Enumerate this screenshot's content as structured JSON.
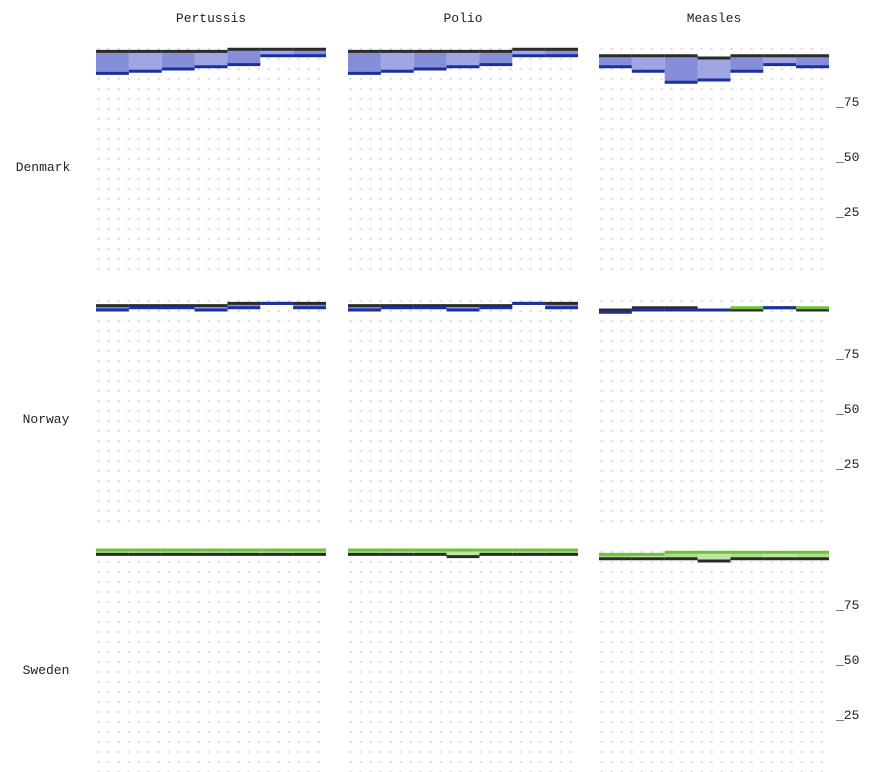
{
  "chart_data": {
    "type": "line",
    "chart_style": "small multiples, step lines with shaded gap between two series",
    "columns": [
      "Pertussis",
      "Polio",
      "Measles"
    ],
    "rows": [
      "Denmark",
      "Norway",
      "Sweden"
    ],
    "periods": 7,
    "ylim": [
      0,
      100
    ],
    "yticks": [
      {
        "value": 75,
        "label": "_75"
      },
      {
        "value": 50,
        "label": "_50"
      },
      {
        "value": 25,
        "label": "_25"
      }
    ],
    "grid": "dotted",
    "colors": {
      "reference_line": "#2b2b2b",
      "lower_line": "#1a2fa0",
      "lower_fill": "#7f88d8",
      "higher_line": "#6cc03a",
      "higher_fill": "#a9dc86",
      "grid_dot": "#c8c8c8"
    },
    "panels": [
      {
        "row": "Denmark",
        "column": "Pertussis",
        "reference": [
          98,
          98,
          98,
          98,
          99,
          99,
          99
        ],
        "comparison": [
          88,
          89,
          90,
          91,
          92,
          96,
          96
        ]
      },
      {
        "row": "Denmark",
        "column": "Polio",
        "reference": [
          98,
          98,
          98,
          98,
          98,
          99,
          99
        ],
        "comparison": [
          88,
          89,
          90,
          91,
          92,
          96,
          96
        ]
      },
      {
        "row": "Denmark",
        "column": "Measles",
        "reference": [
          96,
          96,
          96,
          95,
          96,
          96,
          96
        ],
        "comparison": [
          91,
          89,
          84,
          85,
          89,
          92,
          91
        ]
      },
      {
        "row": "Norway",
        "column": "Pertussis",
        "reference": [
          97,
          97,
          97,
          97,
          98,
          98,
          98
        ],
        "comparison": [
          95,
          96,
          96,
          95,
          96,
          98,
          96
        ]
      },
      {
        "row": "Norway",
        "column": "Polio",
        "reference": [
          97,
          97,
          97,
          97,
          97,
          98,
          98
        ],
        "comparison": [
          95,
          96,
          96,
          95,
          96,
          98,
          96
        ]
      },
      {
        "row": "Norway",
        "column": "Measles",
        "reference": [
          95,
          96,
          96,
          95,
          95,
          96,
          95
        ],
        "comparison": [
          94,
          95,
          95,
          95,
          96,
          96,
          96
        ]
      },
      {
        "row": "Sweden",
        "column": "Pertussis",
        "reference": [
          98,
          98,
          98,
          98,
          98,
          98,
          98
        ],
        "comparison": [
          100,
          100,
          100,
          100,
          100,
          100,
          100
        ]
      },
      {
        "row": "Sweden",
        "column": "Polio",
        "reference": [
          98,
          98,
          98,
          97,
          98,
          98,
          98
        ],
        "comparison": [
          100,
          100,
          100,
          100,
          100,
          100,
          100
        ]
      },
      {
        "row": "Sweden",
        "column": "Measles",
        "reference": [
          96,
          96,
          96,
          95,
          96,
          96,
          96
        ],
        "comparison": [
          98,
          98,
          99,
          99,
          99,
          99,
          99
        ]
      }
    ]
  }
}
